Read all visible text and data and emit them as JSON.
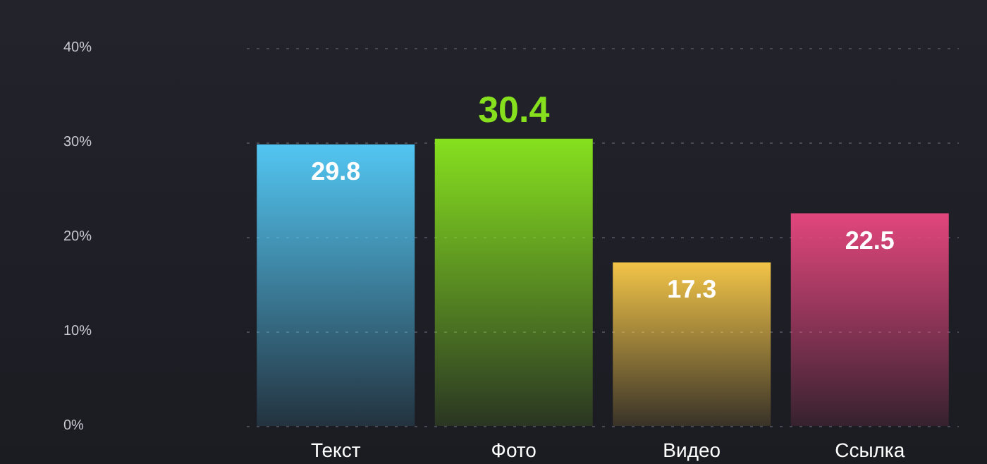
{
  "chart_data": {
    "type": "bar",
    "categories": [
      "Текст",
      "Фото",
      "Видео",
      "Ссылка"
    ],
    "values": [
      29.8,
      30.4,
      17.3,
      22.5
    ],
    "colors": [
      "#52c6f2",
      "#86e01e",
      "#f2c447",
      "#e2467c"
    ],
    "ylim": [
      0,
      40
    ],
    "yticks": [
      {
        "value": 0,
        "label": "0%"
      },
      {
        "value": 10,
        "label": "10%"
      },
      {
        "value": 20,
        "label": "20%"
      },
      {
        "value": 30,
        "label": "30%"
      },
      {
        "value": 40,
        "label": "40%"
      }
    ],
    "grid": "y",
    "data_labels": true
  }
}
